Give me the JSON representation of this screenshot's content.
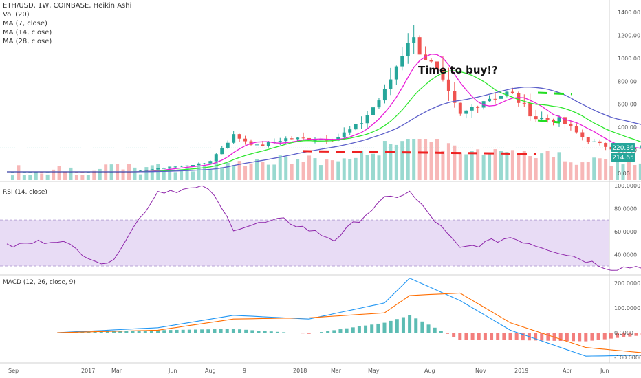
{
  "symbol_header": "ETH/USD, 1W, COINBASE, Heikin Ashi",
  "legend_items": [
    "Vol (20)",
    "MA (7, close)",
    "MA (14, close)",
    "MA (28, close)"
  ],
  "annotation": "Time to buy!?",
  "price_axis": {
    "ticks": [
      "1400.00",
      "1200.00",
      "1000.00",
      "800.00",
      "600.00",
      "400.00",
      "200.00",
      "0.00"
    ],
    "values": [
      1400,
      1200,
      1000,
      800,
      600,
      400,
      200,
      0
    ],
    "last_price": "220.36",
    "last_price_color": "#26a69a",
    "support_price": "214.65",
    "support_color": "#26a69a"
  },
  "rsi": {
    "title": "RSI (14, close)",
    "ticks": [
      "100.0000",
      "80.0000",
      "60.0000",
      "40.0000"
    ],
    "values": [
      100,
      80,
      60,
      40
    ],
    "band_upper": 70,
    "band_lower": 30
  },
  "macd": {
    "title": "MACD (12, 26, close, 9)",
    "ticks": [
      "200.0000",
      "100.0000",
      "0.0000",
      "-100.0000"
    ],
    "values": [
      200,
      100,
      0,
      -100
    ]
  },
  "time_axis": [
    "Sep",
    "2017",
    "Mar",
    "Jun",
    "Aug",
    "9",
    "2018",
    "Mar",
    "May",
    "Aug",
    "Nov",
    "2019",
    "Apr",
    "Jun"
  ],
  "colors": {
    "up": "#26a69a",
    "down": "#ef5350",
    "up_light": "#7fcfc4",
    "down_light": "#f5a5a5",
    "ma7": "#e91ed8",
    "ma14": "#2ee62e",
    "ma28": "#5b5ec9",
    "rsi_line": "#8e24aa",
    "rsi_band": "#e8dcf5",
    "macd_line": "#2196f3",
    "signal_line": "#ff6d00",
    "annotation_green": "#22dd22",
    "annotation_red": "#ee2222"
  },
  "chart_data": {
    "type": "candlestick",
    "title": "ETH/USD, 1W, COINBASE, Heikin Ashi",
    "price_range": [
      -60,
      1500
    ],
    "weekly_close_keyframes": [
      {
        "date": "2016-09",
        "value": 12
      },
      {
        "date": "2017-02",
        "value": 12
      },
      {
        "date": "2017-03",
        "value": 40
      },
      {
        "date": "2017-05",
        "value": 90
      },
      {
        "date": "2017-06",
        "value": 330
      },
      {
        "date": "2017-07",
        "value": 230
      },
      {
        "date": "2017-08",
        "value": 300
      },
      {
        "date": "2017-09",
        "value": 300
      },
      {
        "date": "2017-10",
        "value": 300
      },
      {
        "date": "2017-11",
        "value": 420
      },
      {
        "date": "2017-12",
        "value": 700
      },
      {
        "date": "2018-01",
        "value": 1200
      },
      {
        "date": "2018-02",
        "value": 900
      },
      {
        "date": "2018-03",
        "value": 500
      },
      {
        "date": "2018-04",
        "value": 650
      },
      {
        "date": "2018-05",
        "value": 700
      },
      {
        "date": "2018-06",
        "value": 480
      },
      {
        "date": "2018-07",
        "value": 460
      },
      {
        "date": "2018-08",
        "value": 290
      },
      {
        "date": "2018-09",
        "value": 220
      },
      {
        "date": "2018-10",
        "value": 210
      },
      {
        "date": "2018-11",
        "value": 220
      }
    ],
    "rsi_keyframes": [
      {
        "date": "2016-09",
        "value": 47
      },
      {
        "date": "2016-11",
        "value": 53
      },
      {
        "date": "2017-01",
        "value": 30
      },
      {
        "date": "2017-03",
        "value": 95
      },
      {
        "date": "2017-05",
        "value": 98
      },
      {
        "date": "2017-06",
        "value": 63
      },
      {
        "date": "2017-08",
        "value": 70
      },
      {
        "date": "2017-10",
        "value": 53
      },
      {
        "date": "2017-12",
        "value": 88
      },
      {
        "date": "2018-01",
        "value": 94
      },
      {
        "date": "2018-03",
        "value": 45
      },
      {
        "date": "2018-05",
        "value": 55
      },
      {
        "date": "2018-07",
        "value": 42
      },
      {
        "date": "2018-09",
        "value": 28
      },
      {
        "date": "2018-11",
        "value": 31
      }
    ],
    "macd_keyframes": [
      {
        "date": "2016-11",
        "macd": 0,
        "signal": 0
      },
      {
        "date": "2017-03",
        "macd": 20,
        "signal": 10
      },
      {
        "date": "2017-06",
        "macd": 70,
        "signal": 55
      },
      {
        "date": "2017-09",
        "macd": 55,
        "signal": 60
      },
      {
        "date": "2017-12",
        "macd": 120,
        "signal": 80
      },
      {
        "date": "2018-01",
        "macd": 220,
        "signal": 150
      },
      {
        "date": "2018-03",
        "macd": 130,
        "signal": 160
      },
      {
        "date": "2018-05",
        "macd": 10,
        "signal": 40
      },
      {
        "date": "2018-08",
        "macd": -95,
        "signal": -60
      },
      {
        "date": "2018-11",
        "macd": -90,
        "signal": -88
      }
    ],
    "annotations": {
      "resistance": 700,
      "mid_resistance": 460,
      "support": 180
    }
  }
}
